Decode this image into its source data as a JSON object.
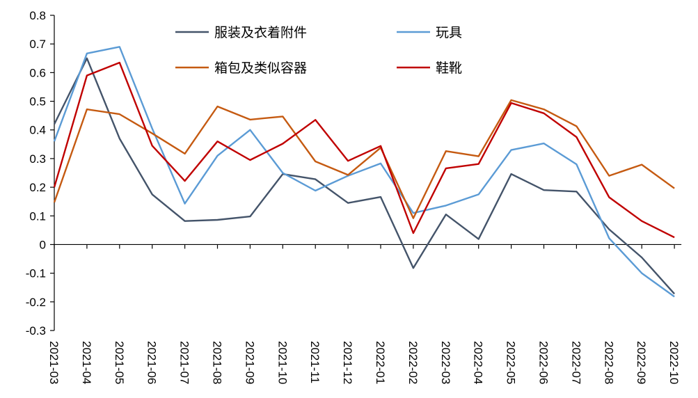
{
  "chart_data": {
    "type": "line",
    "title": "",
    "xlabel": "",
    "ylabel": "",
    "ylim": [
      -0.3,
      0.8
    ],
    "yticks": [
      "0.8",
      "0.7",
      "0.6",
      "0.5",
      "0.4",
      "0.3",
      "0.2",
      "0.1",
      "0",
      "-0.1",
      "-0.2",
      "-0.3"
    ],
    "ytick_values": [
      0.8,
      0.7,
      0.6,
      0.5,
      0.4,
      0.3,
      0.2,
      0.1,
      0,
      -0.1,
      -0.2,
      -0.3
    ],
    "categories": [
      "2021-03",
      "2021-04",
      "2021-05",
      "2021-06",
      "2021-07",
      "2021-08",
      "2021-09",
      "2021-10",
      "2021-11",
      "2021-12",
      "2022-01",
      "2022-02",
      "2022-03",
      "2022-04",
      "2022-05",
      "2022-06",
      "2022-07",
      "2022-08",
      "2022-09",
      "2022-10"
    ],
    "grid": false,
    "legend_position": "top",
    "series": [
      {
        "name": "服装及衣着附件",
        "color": "#44546a",
        "values": [
          0.42,
          0.65,
          0.37,
          0.175,
          0.082,
          0.086,
          0.098,
          0.246,
          0.228,
          0.145,
          0.166,
          -0.082,
          0.105,
          0.019,
          0.246,
          0.19,
          0.185,
          0.053,
          -0.045,
          -0.172
        ]
      },
      {
        "name": "玩具",
        "color": "#5b9bd5",
        "values": [
          0.36,
          0.667,
          0.69,
          0.405,
          0.143,
          0.31,
          0.4,
          0.25,
          0.188,
          0.24,
          0.283,
          0.11,
          0.136,
          0.175,
          0.33,
          0.353,
          0.28,
          0.022,
          -0.1,
          -0.182
        ]
      },
      {
        "name": "箱包及类似容器",
        "color": "#c55a11",
        "values": [
          0.147,
          0.472,
          0.455,
          0.388,
          0.317,
          0.482,
          0.436,
          0.447,
          0.29,
          0.243,
          0.338,
          0.092,
          0.326,
          0.308,
          0.504,
          0.472,
          0.413,
          0.24,
          0.279,
          0.196
        ]
      },
      {
        "name": "鞋靴",
        "color": "#c00000",
        "values": [
          0.2,
          0.59,
          0.635,
          0.345,
          0.222,
          0.36,
          0.295,
          0.352,
          0.435,
          0.292,
          0.344,
          0.04,
          0.266,
          0.281,
          0.494,
          0.458,
          0.375,
          0.165,
          0.082,
          0.025
        ]
      }
    ]
  }
}
